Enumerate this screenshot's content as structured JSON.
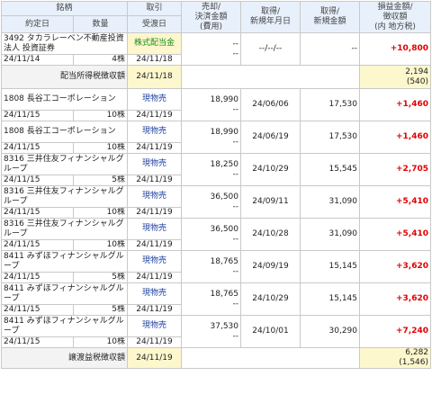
{
  "headers": {
    "stock": "銘柄",
    "trade": "取引",
    "sale_amount": "売却/",
    "settle_amount": "決済金額",
    "cost": "(費用)",
    "acq_date_1": "取得/",
    "acq_date_2": "新規年月日",
    "acq_amount_1": "取得/",
    "acq_amount_2": "新規金額",
    "pl_1": "損益金額/",
    "pl_2": "徴収額",
    "pl_3": "(内 地方税)",
    "contract_date": "約定日",
    "qty": "数量",
    "delivery_date": "受渡日"
  },
  "dividend": {
    "name": "3492 タカラレーベン不動産投資法人 投資証券",
    "trade": "株式配当金",
    "sale": "--",
    "cost": "--",
    "acq_date": "--/--/--",
    "acq_amount": "--",
    "pl": "+10,800",
    "contract_date": "24/11/14",
    "qty": "4株",
    "delivery_date": "24/11/18"
  },
  "dividend_tax": {
    "label": "配当所得税徴収額",
    "date": "24/11/18",
    "amount": "2,194",
    "local": "(540)"
  },
  "trades": [
    {
      "name": "1808 長谷工コーポレーション",
      "trade": "現物売",
      "amount": "18,990",
      "cost": "--",
      "acq_date": "24/06/06",
      "acq_amount": "17,530",
      "pl": "+1,460",
      "contract_date": "24/11/15",
      "qty": "10株",
      "delivery_date": "24/11/19"
    },
    {
      "name": "1808 長谷工コーポレーション",
      "trade": "現物売",
      "amount": "18,990",
      "cost": "--",
      "acq_date": "24/06/19",
      "acq_amount": "17,530",
      "pl": "+1,460",
      "contract_date": "24/11/15",
      "qty": "10株",
      "delivery_date": "24/11/19"
    },
    {
      "name": "8316 三井住友フィナンシャルグループ",
      "trade": "現物売",
      "amount": "18,250",
      "cost": "--",
      "acq_date": "24/10/29",
      "acq_amount": "15,545",
      "pl": "+2,705",
      "contract_date": "24/11/15",
      "qty": "5株",
      "delivery_date": "24/11/19"
    },
    {
      "name": "8316 三井住友フィナンシャルグループ",
      "trade": "現物売",
      "amount": "36,500",
      "cost": "--",
      "acq_date": "24/09/11",
      "acq_amount": "31,090",
      "pl": "+5,410",
      "contract_date": "24/11/15",
      "qty": "10株",
      "delivery_date": "24/11/19"
    },
    {
      "name": "8316 三井住友フィナンシャルグループ",
      "trade": "現物売",
      "amount": "36,500",
      "cost": "--",
      "acq_date": "24/10/28",
      "acq_amount": "31,090",
      "pl": "+5,410",
      "contract_date": "24/11/15",
      "qty": "10株",
      "delivery_date": "24/11/19"
    },
    {
      "name": "8411 みずほフィナンシャルグループ",
      "trade": "現物売",
      "amount": "18,765",
      "cost": "--",
      "acq_date": "24/09/19",
      "acq_amount": "15,145",
      "pl": "+3,620",
      "contract_date": "24/11/15",
      "qty": "5株",
      "delivery_date": "24/11/19"
    },
    {
      "name": "8411 みずほフィナンシャルグループ",
      "trade": "現物売",
      "amount": "18,765",
      "cost": "--",
      "acq_date": "24/10/29",
      "acq_amount": "15,145",
      "pl": "+3,620",
      "contract_date": "24/11/15",
      "qty": "5株",
      "delivery_date": "24/11/19"
    },
    {
      "name": "8411 みずほフィナンシャルグループ",
      "trade": "現物売",
      "amount": "37,530",
      "cost": "--",
      "acq_date": "24/10/01",
      "acq_amount": "30,290",
      "pl": "+7,240",
      "contract_date": "24/11/15",
      "qty": "10株",
      "delivery_date": "24/11/19"
    }
  ],
  "transfer_tax": {
    "label": "譲渡益税徴収額",
    "date": "24/11/19",
    "amount": "6,282",
    "local": "(1,546)"
  }
}
